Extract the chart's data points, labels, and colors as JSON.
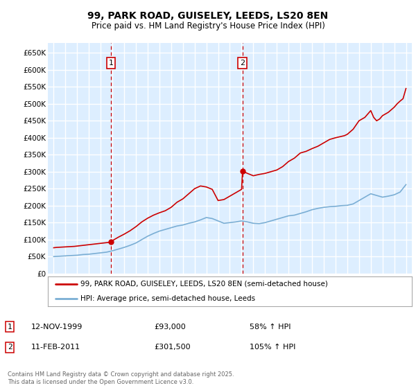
{
  "title1": "99, PARK ROAD, GUISELEY, LEEDS, LS20 8EN",
  "title2": "Price paid vs. HM Land Registry's House Price Index (HPI)",
  "ylabel_ticks": [
    "£0",
    "£50K",
    "£100K",
    "£150K",
    "£200K",
    "£250K",
    "£300K",
    "£350K",
    "£400K",
    "£450K",
    "£500K",
    "£550K",
    "£600K",
    "£650K"
  ],
  "ylim": [
    0,
    680000
  ],
  "xlim_start": 1994.5,
  "xlim_end": 2025.5,
  "purchase1_x": 1999.87,
  "purchase1_y": 93000,
  "purchase1_label": "1",
  "purchase2_x": 2011.08,
  "purchase2_y": 301500,
  "purchase2_label": "2",
  "legend_line1": "99, PARK ROAD, GUISELEY, LEEDS, LS20 8EN (semi-detached house)",
  "legend_line2": "HPI: Average price, semi-detached house, Leeds",
  "table_row1_num": "1",
  "table_row1_date": "12-NOV-1999",
  "table_row1_price": "£93,000",
  "table_row1_hpi": "58% ↑ HPI",
  "table_row2_num": "2",
  "table_row2_date": "11-FEB-2011",
  "table_row2_price": "£301,500",
  "table_row2_hpi": "105% ↑ HPI",
  "copyright_text": "Contains HM Land Registry data © Crown copyright and database right 2025.\nThis data is licensed under the Open Government Licence v3.0.",
  "red_color": "#cc0000",
  "blue_color": "#7aaed4",
  "bg_color": "#ddeeff",
  "grid_color": "#ffffff"
}
